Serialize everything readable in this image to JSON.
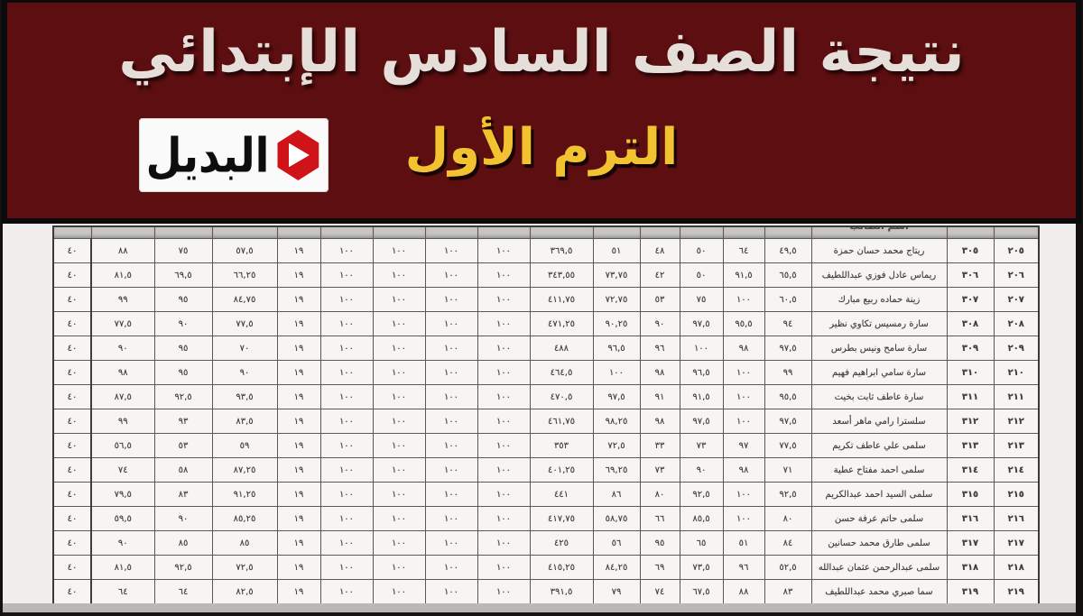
{
  "banner": {
    "title": "نتيجة الصف السادس الإبتدائي",
    "term": "الترم الأول",
    "colors": {
      "background": "#5c0e10",
      "title_text": "#e6dfd9",
      "term_text": "#f2c230",
      "frame": "#0b0b0b"
    },
    "logo": {
      "text": "البديل",
      "icon": "play-hexagon-icon",
      "icon_color": "#cf1318",
      "box_color": "#fbfafa"
    }
  },
  "sheet": {
    "header_partial": {
      "name_label": "اسم الطالب"
    },
    "table": {
      "rows": [
        {
          "scores": [
            "٤٠",
            "٨٨",
            "٧٥",
            "٥٧,٥",
            "١٩",
            "١٠٠",
            "١٠٠",
            "١٠٠",
            "١٠٠",
            "٣٦٩,٥",
            "٥١",
            "٤٨",
            "٥٠",
            "٦٤",
            "٤٩,٥"
          ],
          "name": "ريتاج محمد حسان حمزة",
          "seat": "٣٠٥",
          "code": "٢٠٥"
        },
        {
          "scores": [
            "٤٠",
            "٨١,٥",
            "٦٩,٥",
            "٦٦,٢٥",
            "١٩",
            "١٠٠",
            "١٠٠",
            "١٠٠",
            "١٠٠",
            "٣٤٣,٥٥",
            "٧٣,٧٥",
            "٤٢",
            "٥٠",
            "٩١,٥",
            "٦٥,٥"
          ],
          "name": "ريماس عادل فوزي عبداللطيف",
          "seat": "٣٠٦",
          "code": "٢٠٦"
        },
        {
          "scores": [
            "٤٠",
            "٩٩",
            "٩٥",
            "٨٤,٧٥",
            "١٩",
            "١٠٠",
            "١٠٠",
            "١٠٠",
            "١٠٠",
            "٤١١,٧٥",
            "٧٢,٧٥",
            "٥٣",
            "٧٥",
            "١٠٠",
            "٦٠,٥"
          ],
          "name": "زينة حماده ربيع مبارك",
          "seat": "٣٠٧",
          "code": "٢٠٧"
        },
        {
          "scores": [
            "٤٠",
            "٧٧,٥",
            "٩٠",
            "٧٧,٥",
            "١٩",
            "١٠٠",
            "١٠٠",
            "١٠٠",
            "١٠٠",
            "٤٧١,٢٥",
            "٩٠,٢٥",
            "٩٠",
            "٩٧,٥",
            "٩٥,٥",
            "٩٤"
          ],
          "name": "سارة رمسيس تكاوي نظير",
          "seat": "٣٠٨",
          "code": "٢٠٨"
        },
        {
          "scores": [
            "٤٠",
            "٩٠",
            "٩٥",
            "٧٠",
            "١٩",
            "١٠٠",
            "١٠٠",
            "١٠٠",
            "١٠٠",
            "٤٨٨",
            "٩٦,٥",
            "٩٦",
            "١٠٠",
            "٩٨",
            "٩٧,٥"
          ],
          "name": "سارة سامح ونيس بطرس",
          "seat": "٣٠٩",
          "code": "٢٠٩"
        },
        {
          "scores": [
            "٤٠",
            "٩٨",
            "٩٥",
            "٩٠",
            "١٩",
            "١٠٠",
            "١٠٠",
            "١٠٠",
            "١٠٠",
            "٤٦٤,٥",
            "١٠٠",
            "٩٨",
            "٩٦,٥",
            "١٠٠",
            "٩٩"
          ],
          "name": "سارة سامي ابراهيم فهيم",
          "seat": "٣١٠",
          "code": "٢١٠"
        },
        {
          "scores": [
            "٤٠",
            "٨٧,٥",
            "٩٢,٥",
            "٩٣,٥",
            "١٩",
            "١٠٠",
            "١٠٠",
            "١٠٠",
            "١٠٠",
            "٤٧٠,٥",
            "٩٧,٥",
            "٩١",
            "٩١,٥",
            "١٠٠",
            "٩٥,٥"
          ],
          "name": "سارة عاطف ثابت بخيت",
          "seat": "٣١١",
          "code": "٢١١"
        },
        {
          "scores": [
            "٤٠",
            "٩٩",
            "٩٣",
            "٨٣,٥",
            "١٩",
            "١٠٠",
            "١٠٠",
            "١٠٠",
            "١٠٠",
            "٤٦١,٧٥",
            "٩٨,٢٥",
            "٩٨",
            "٩٧,٥",
            "١٠٠",
            "٩٧,٥"
          ],
          "name": "سلسترا رامي ماهر أسعد",
          "seat": "٣١٢",
          "code": "٢١٢"
        },
        {
          "scores": [
            "٤٠",
            "٥٦,٥",
            "٥٣",
            "٥٩",
            "١٩",
            "١٠٠",
            "١٠٠",
            "١٠٠",
            "١٠٠",
            "٣٥٣",
            "٧٢,٥",
            "٣٣",
            "٧٣",
            "٩٧",
            "٧٧,٥"
          ],
          "name": "سلمى علي عاطف تكريم",
          "seat": "٣١٣",
          "code": "٢١٣"
        },
        {
          "scores": [
            "٤٠",
            "٧٤",
            "٥٨",
            "٨٧,٢٥",
            "١٩",
            "١٠٠",
            "١٠٠",
            "١٠٠",
            "١٠٠",
            "٤٠١,٢٥",
            "٦٩,٢٥",
            "٧٣",
            "٩٠",
            "٩٨",
            "٧١"
          ],
          "name": "سلمى احمد مفتاح عطية",
          "seat": "٣١٤",
          "code": "٢١٤"
        },
        {
          "scores": [
            "٤٠",
            "٧٩,٥",
            "٨٣",
            "٩١,٢٥",
            "١٩",
            "١٠٠",
            "١٠٠",
            "١٠٠",
            "١٠٠",
            "٤٤١",
            "٨٦",
            "٨٠",
            "٩٢,٥",
            "١٠٠",
            "٩٢,٥"
          ],
          "name": "سلمى السيد احمد عبدالكريم",
          "seat": "٣١٥",
          "code": "٢١٥"
        },
        {
          "scores": [
            "٤٠",
            "٥٩,٥",
            "٩٠",
            "٨٥,٢٥",
            "١٩",
            "١٠٠",
            "١٠٠",
            "١٠٠",
            "١٠٠",
            "٤١٧,٧٥",
            "٥٨,٧٥",
            "٦٦",
            "٨٥,٥",
            "١٠٠",
            "٨٠"
          ],
          "name": "سلمى حاتم عرفة حسن",
          "seat": "٣١٦",
          "code": "٢١٦"
        },
        {
          "scores": [
            "٤٠",
            "٩٠",
            "٨٥",
            "٨٥",
            "١٩",
            "١٠٠",
            "١٠٠",
            "١٠٠",
            "١٠٠",
            "٤٢٥",
            "٥٦",
            "٩٥",
            "٦٥",
            "٥١",
            "٨٤"
          ],
          "name": "سلمى طارق محمد حسانين",
          "seat": "٣١٧",
          "code": "٢١٧"
        },
        {
          "scores": [
            "٤٠",
            "٨١,٥",
            "٩٢,٥",
            "٧٢,٥",
            "١٩",
            "١٠٠",
            "١٠٠",
            "١٠٠",
            "١٠٠",
            "٤١٥,٢٥",
            "٨٤,٢٥",
            "٦٩",
            "٧٣,٥",
            "٩٦",
            "٥٢,٥"
          ],
          "name": "سلمى عبدالرحمن عثمان عبدالله",
          "seat": "٣١٨",
          "code": "٢١٨"
        },
        {
          "scores": [
            "٤٠",
            "٦٤",
            "٦٤",
            "٨٢,٥",
            "١٩",
            "١٠٠",
            "١٠٠",
            "١٠٠",
            "١٠٠",
            "٣٩١,٥",
            "٧٩",
            "٧٤",
            "٦٧,٥",
            "٨٨",
            "٨٣"
          ],
          "name": "سما صبري محمد عبداللطيف",
          "seat": "٣١٩",
          "code": "٢١٩"
        }
      ]
    }
  }
}
